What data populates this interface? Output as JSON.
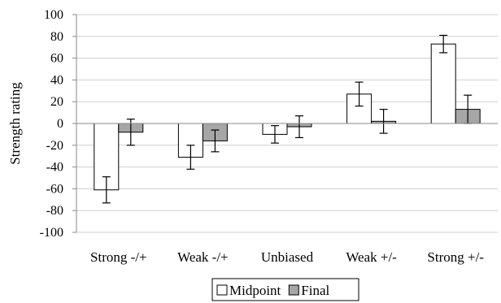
{
  "chart_data": {
    "type": "bar",
    "title": "",
    "xlabel": "",
    "ylabel": "Strength rating",
    "ylim": [
      -100,
      100
    ],
    "yticks": [
      100,
      80,
      60,
      40,
      20,
      0,
      -20,
      -40,
      -60,
      -80,
      -100
    ],
    "grid": true,
    "legend_position": "bottom",
    "categories": [
      "Strong -/+",
      "Weak -/+",
      "Unbiased",
      "Weak +/-",
      "Strong +/-"
    ],
    "series": [
      {
        "name": "Midpoint",
        "color": "#ffffff",
        "values": [
          -61,
          -31,
          -10,
          27,
          73
        ],
        "error": [
          12,
          11,
          8,
          11,
          8
        ]
      },
      {
        "name": "Final",
        "color": "#a6a6a6",
        "values": [
          -8,
          -16,
          -3,
          2,
          13
        ],
        "error": [
          12,
          10,
          10,
          11,
          13
        ]
      }
    ]
  }
}
